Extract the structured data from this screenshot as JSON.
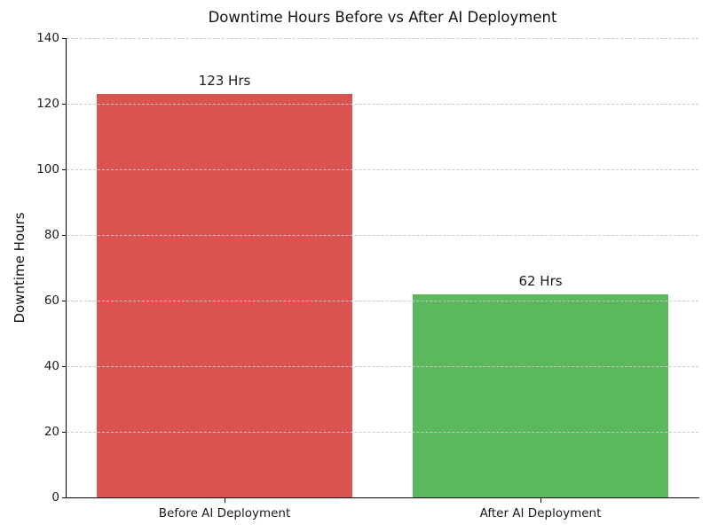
{
  "chart_data": {
    "type": "bar",
    "title": "Downtime Hours Before vs After AI Deployment",
    "xlabel": "",
    "ylabel": "Downtime Hours",
    "categories": [
      "Before AI Deployment",
      "After AI Deployment"
    ],
    "values": [
      123,
      62
    ],
    "bar_labels": [
      "123 Hrs",
      "62 Hrs"
    ],
    "bar_colors": [
      "#d9534f",
      "#5cb85c"
    ],
    "ylim": [
      0,
      140
    ],
    "yticks": [
      0,
      20,
      40,
      60,
      80,
      100,
      120,
      140
    ],
    "grid": {
      "axis": "y",
      "style": "dashed",
      "color": "#c9c9c9",
      "above_bars": true
    },
    "legend": "none",
    "colors": {
      "background": "#ffffff",
      "spine": "#000000",
      "text": "#1a1a1a",
      "before_bar": "#d9534f",
      "after_bar": "#5cb85c"
    }
  }
}
